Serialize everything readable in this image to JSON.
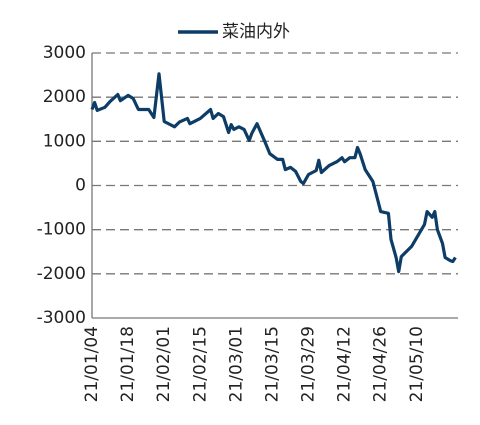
{
  "chart_data": {
    "type": "line",
    "x": [
      "21/01/04",
      "21/01/05",
      "21/01/06",
      "21/01/09",
      "21/01/11",
      "21/01/14",
      "21/01/15",
      "21/01/18",
      "21/01/20",
      "21/01/22",
      "21/01/26",
      "21/01/28",
      "21/01/30",
      "21/02/01",
      "21/02/05",
      "21/02/07",
      "21/02/10",
      "21/02/11",
      "21/02/15",
      "21/02/19",
      "21/02/20",
      "21/02/22",
      "21/02/24",
      "21/02/26",
      "21/02/27",
      "21/02/28",
      "21/03/02",
      "21/03/04",
      "21/03/06",
      "21/03/07",
      "21/03/09",
      "21/03/12",
      "21/03/14",
      "21/03/17",
      "21/03/19",
      "21/03/20",
      "21/03/22",
      "21/03/24",
      "21/03/26",
      "21/03/27",
      "21/03/29",
      "21/04/01",
      "21/04/02",
      "21/04/03",
      "21/04/06",
      "21/04/09",
      "21/04/11",
      "21/04/12",
      "21/04/14",
      "21/04/16",
      "21/04/17",
      "21/04/18",
      "21/04/20",
      "21/04/23",
      "21/04/24",
      "21/04/25",
      "21/04/26",
      "21/04/29",
      "21/04/30",
      "21/05/02",
      "21/05/03",
      "21/05/04",
      "21/05/08",
      "21/05/10",
      "21/05/13",
      "21/05/14",
      "21/05/16",
      "21/05/17",
      "21/05/18",
      "21/05/20",
      "21/05/21",
      "21/05/23",
      "21/05/24",
      "21/05/25"
    ],
    "series": [
      {
        "name": "菜油内外",
        "color": "#0d3d66",
        "values": [
          1720,
          1880,
          1700,
          1770,
          1900,
          2060,
          1920,
          2040,
          1970,
          1720,
          1720,
          1540,
          2530,
          1450,
          1330,
          1440,
          1520,
          1400,
          1520,
          1720,
          1520,
          1630,
          1560,
          1200,
          1380,
          1270,
          1330,
          1270,
          1020,
          1180,
          1400,
          1000,
          720,
          590,
          590,
          360,
          410,
          320,
          90,
          45,
          250,
          340,
          570,
          295,
          450,
          540,
          630,
          540,
          630,
          630,
          860,
          720,
          360,
          90,
          -135,
          -360,
          -590,
          -630,
          -1220,
          -1630,
          -1950,
          -1610,
          -1380,
          -1180,
          -880,
          -590,
          -720,
          -590,
          -1000,
          -1310,
          -1630,
          -1700,
          -1720,
          -1630
        ]
      }
    ],
    "xlim": [
      "21/01/04",
      "21/05/26"
    ],
    "xticks": [
      "21/01/04",
      "21/01/18",
      "21/02/01",
      "21/02/15",
      "21/03/01",
      "21/03/15",
      "21/03/29",
      "21/04/12",
      "21/04/26",
      "21/05/10"
    ],
    "ylim": [
      -3000,
      3000
    ],
    "yticks": [
      -3000,
      -2000,
      -1000,
      0,
      1000,
      2000,
      3000
    ],
    "grid": true,
    "legend": "top"
  }
}
